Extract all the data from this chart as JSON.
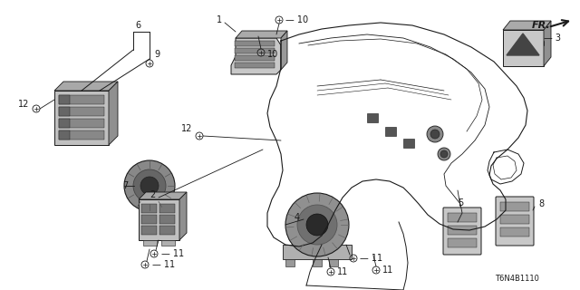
{
  "background_color": "#ffffff",
  "line_color": "#1a1a1a",
  "text_color": "#1a1a1a",
  "diagram_code": "T6N4B1110",
  "fig_width": 6.4,
  "fig_height": 3.2,
  "dpi": 100
}
